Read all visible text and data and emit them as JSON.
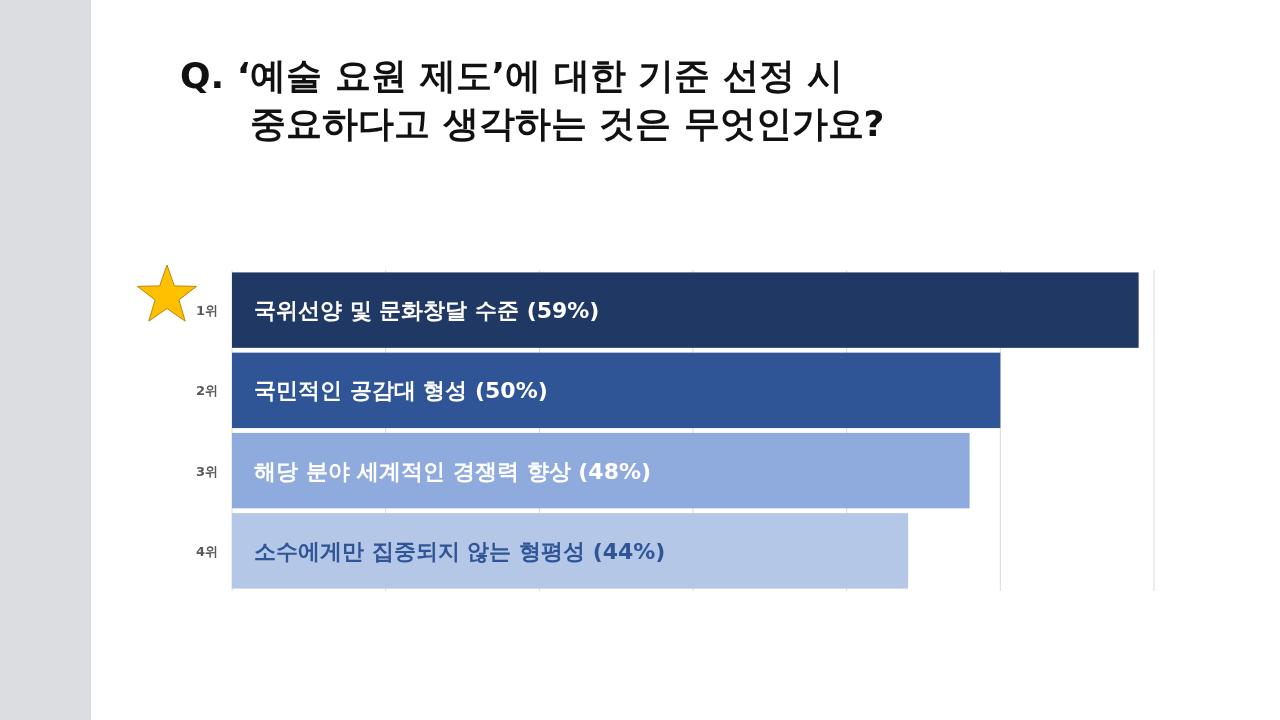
{
  "chart_data": {
    "type": "bar",
    "orientation": "horizontal",
    "title": "Q. ‘예술 요원 제도’에 대한 기준 선정 시\n중요하다고 생각하는 것은 무엇인가요?",
    "categories": [
      "1위",
      "2위",
      "3위",
      "4위"
    ],
    "values": [
      59,
      50,
      48,
      44
    ],
    "colors": [
      "#203864",
      "#2f5597",
      "#8faadc",
      "#b4c7e7"
    ],
    "value_labels": [
      "국위선양 및 문화창달 수준 (59%)",
      "국민적인 공감대 형성 (50%)",
      "해당 분야 세계적인 경쟁력 향상 (48%)",
      "소수에게만 집중되지 않는 형평성 (44%)"
    ],
    "xlim": [
      0,
      60
    ],
    "xticks": [
      {
        "value": 0,
        "label": null
      },
      {
        "value": 10,
        "label": null
      },
      {
        "value": 20,
        "label": null
      },
      {
        "value": 30,
        "label": null
      },
      {
        "value": 40,
        "label": null
      },
      {
        "value": 50,
        "label": null
      },
      {
        "value": 60,
        "label": null
      }
    ],
    "grid": "x",
    "tick_labels": "y"
  }
}
